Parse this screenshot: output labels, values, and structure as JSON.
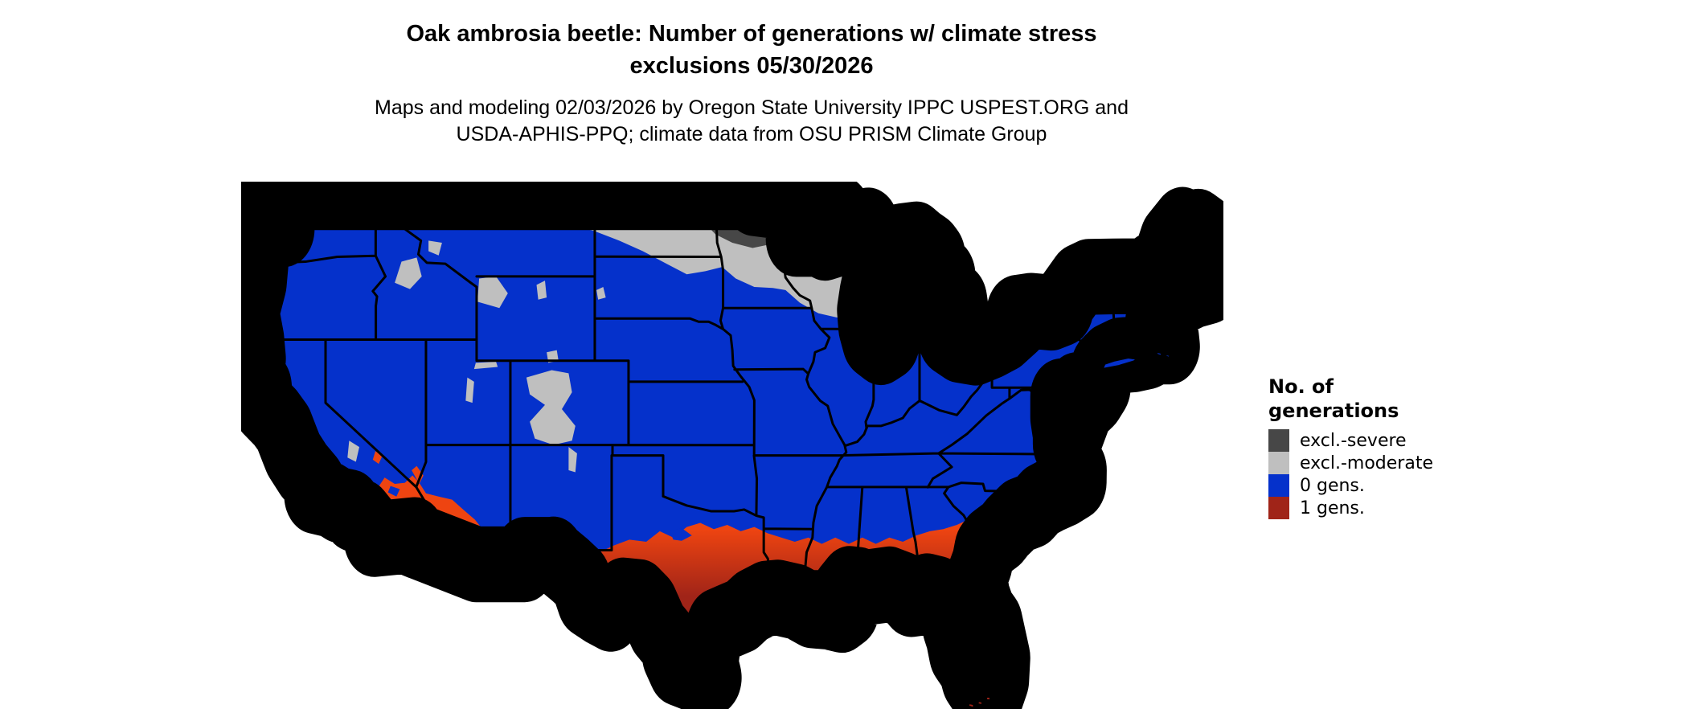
{
  "title": {
    "line1": "Oak ambrosia beetle: Number of generations w/ climate stress",
    "line2": "exclusions 05/30/2026"
  },
  "subtitle": {
    "line1": "Maps and modeling 02/03/2026 by Oregon State University IPPC USPEST.ORG and",
    "line2": "USDA-APHIS-PPQ; climate data from OSU PRISM Climate Group"
  },
  "legend": {
    "title_line1": "No. of",
    "title_line2": "generations",
    "items": [
      {
        "label": "excl.-severe",
        "color": "#474747"
      },
      {
        "label": "excl.-moderate",
        "color": "#bfbfbf"
      },
      {
        "label": "0 gens.",
        "color": "#0531cb"
      },
      {
        "label": "1 gens.",
        "color": "#a02418"
      }
    ]
  },
  "map": {
    "type": "choropleth",
    "area": "Contiguous United States with state boundaries",
    "colors": {
      "background": "#ffffff",
      "border": "#000000",
      "severe": "#474747",
      "moderate": "#bfbfbf",
      "gens0": "#0531cb",
      "gens1": "#a02418",
      "gens1_warm_edge": "#ee4411"
    },
    "classes": [
      {
        "label": "excl.-severe",
        "color": "#474747",
        "shown_in": "northern Minnesota and northeastern North Dakota"
      },
      {
        "label": "excl.-moderate",
        "color": "#bfbfbf",
        "shown_in": "northern Plains, Minnesota, Wisconsin, Upper Michigan, northern New England, Adirondacks and Rocky Mountain highlands"
      },
      {
        "label": "0 gens.",
        "color": "#0531cb",
        "shown_in": "most of the contiguous United States"
      },
      {
        "label": "1 gens.",
        "color": "#a02418",
        "shown_in": "southern Texas, Gulf Coast, Florida, southern Georgia/South Carolina and low deserts of Arizona and southeastern California"
      }
    ]
  }
}
